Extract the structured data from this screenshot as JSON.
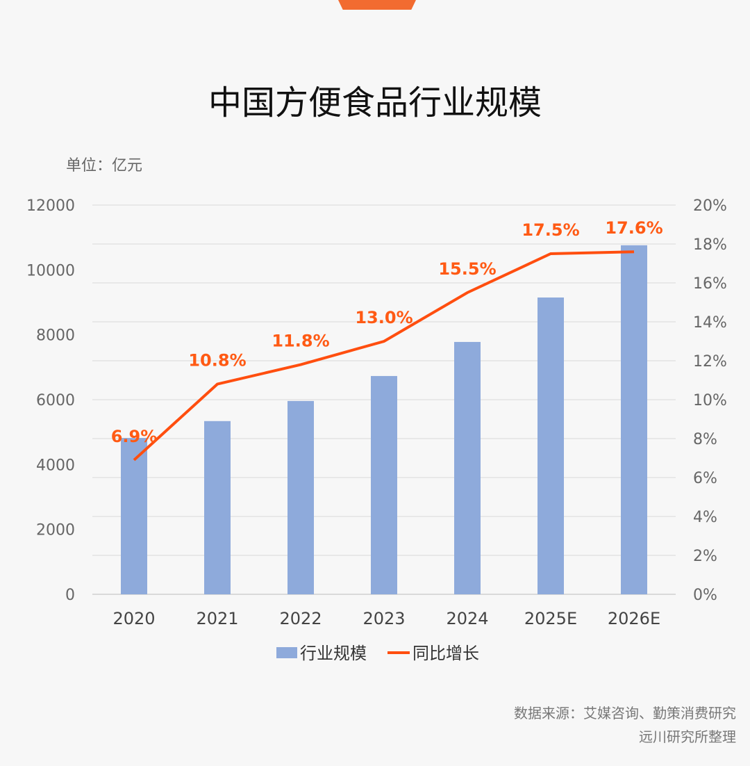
{
  "chart_data": {
    "type": "bar+line",
    "title": "中国方便食品行业规模",
    "unit_label": "单位：亿元",
    "categories": [
      "2020",
      "2021",
      "2022",
      "2023",
      "2024",
      "2025E",
      "2026E"
    ],
    "series": [
      {
        "name": "行业规模",
        "type": "bar",
        "axis": "left",
        "color": "#8eaadb",
        "values": [
          4820,
          5340,
          5960,
          6730,
          7780,
          9150,
          10760
        ]
      },
      {
        "name": "同比增长",
        "type": "line",
        "axis": "right",
        "color": "#ff4e0f",
        "values": [
          6.9,
          10.8,
          11.8,
          13.0,
          15.5,
          17.5,
          17.6
        ],
        "labels": [
          "6.9%",
          "10.8%",
          "11.8%",
          "13.0%",
          "15.5%",
          "17.5%",
          "17.6%"
        ]
      }
    ],
    "left_axis": {
      "ylim": [
        0,
        12000
      ],
      "ticks": [
        "0",
        "2000",
        "4000",
        "6000",
        "8000",
        "10000",
        "12000"
      ]
    },
    "right_axis": {
      "ylim": [
        0,
        20
      ],
      "ticks": [
        "0%",
        "2%",
        "4%",
        "6%",
        "8%",
        "10%",
        "12%",
        "14%",
        "16%",
        "18%",
        "20%"
      ]
    },
    "grid": true,
    "legend": "bottom"
  },
  "source": {
    "line1": "数据来源：艾媒咨询、勤策消费研究",
    "line2": "远川研究所整理"
  },
  "colors": {
    "accent": "#f26b30"
  }
}
